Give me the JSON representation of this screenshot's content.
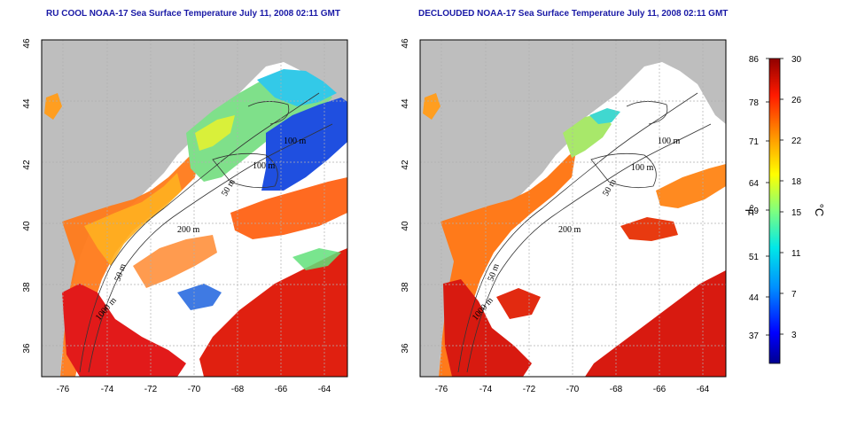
{
  "panels": [
    {
      "id": "left",
      "title": "RU COOL NOAA-17 Sea Surface Temperature July 11, 2008 02:11 GMT",
      "contour_labels": [
        "100 m",
        "100 m",
        "50 m",
        "200 m",
        "50 m",
        "1000 m"
      ]
    },
    {
      "id": "right",
      "title": "DECLOUDED NOAA-17 Sea Surface Temperature July 11, 2008 02:11 GMT",
      "contour_labels": [
        "100 m",
        "100 m",
        "50 m",
        "200 m",
        "50 m",
        "1000 m"
      ]
    }
  ],
  "axes": {
    "x_ticks": [
      "-76",
      "-74",
      "-72",
      "-70",
      "-68",
      "-66",
      "-64"
    ],
    "y_ticks": [
      "46",
      "44",
      "42",
      "40",
      "38",
      "36"
    ],
    "x_range": [
      -77,
      -63
    ],
    "y_range": [
      35,
      46
    ]
  },
  "colorbar": {
    "fahrenheit_ticks": [
      "86",
      "78",
      "71",
      "64",
      "59",
      "51",
      "44",
      "37"
    ],
    "celsius_ticks": [
      "30",
      "26",
      "22",
      "18",
      "15",
      "11",
      "7",
      "3"
    ],
    "f_label": "°F",
    "c_label": "°C",
    "colors": [
      "#000090",
      "#0000ff",
      "#0080ff",
      "#00ffff",
      "#80ff80",
      "#ffff00",
      "#ff8000",
      "#ff0000",
      "#900000"
    ]
  },
  "colors": {
    "land": "#bebebe",
    "title": "#1a1aa6",
    "grid": "#b0b0b0"
  }
}
